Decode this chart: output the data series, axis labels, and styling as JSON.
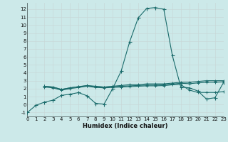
{
  "xlabel": "Humidex (Indice chaleur)",
  "bg_color": "#cce9e9",
  "grid_color": "#dde8e8",
  "line_color": "#1a6b6b",
  "xlim": [
    0,
    23
  ],
  "ylim": [
    -1.5,
    12.8
  ],
  "yticks": [
    -1,
    0,
    1,
    2,
    3,
    4,
    5,
    6,
    7,
    8,
    9,
    10,
    11,
    12
  ],
  "xticks": [
    0,
    1,
    2,
    3,
    4,
    5,
    6,
    7,
    8,
    9,
    10,
    11,
    12,
    13,
    14,
    15,
    16,
    17,
    18,
    19,
    20,
    21,
    22,
    23
  ],
  "line1_x": [
    0,
    1,
    2,
    3,
    4,
    5,
    6,
    7,
    8,
    9,
    10,
    11,
    12,
    13,
    14,
    15,
    16,
    17,
    18,
    19,
    20,
    21,
    22,
    23
  ],
  "line1_y": [
    -1.0,
    -0.1,
    0.3,
    0.55,
    1.15,
    1.3,
    1.5,
    1.1,
    0.15,
    0.05,
    2.0,
    4.2,
    7.9,
    10.9,
    12.1,
    12.2,
    12.0,
    6.2,
    2.2,
    2.1,
    1.7,
    0.7,
    0.85,
    2.75
  ],
  "line2_x": [
    2,
    3,
    4,
    5,
    6,
    7,
    8,
    9,
    10,
    11,
    12,
    13,
    14,
    15,
    16,
    17,
    18,
    19,
    20,
    21,
    22,
    23
  ],
  "line2_y": [
    2.3,
    2.2,
    1.9,
    2.1,
    2.25,
    2.4,
    2.3,
    2.2,
    2.3,
    2.4,
    2.5,
    2.5,
    2.6,
    2.6,
    2.6,
    2.7,
    2.8,
    2.8,
    2.9,
    3.0,
    3.0,
    3.0
  ],
  "line3_x": [
    2,
    3,
    4,
    5,
    6,
    7,
    8,
    9,
    10,
    11,
    12,
    13,
    14,
    15,
    16,
    17,
    18,
    19,
    20,
    21,
    22,
    23
  ],
  "line3_y": [
    2.2,
    2.1,
    1.8,
    2.0,
    2.15,
    2.3,
    2.15,
    2.1,
    2.15,
    2.2,
    2.25,
    2.3,
    2.35,
    2.35,
    2.38,
    2.48,
    2.5,
    1.82,
    1.52,
    1.52,
    1.52,
    1.62
  ],
  "line4_x": [
    2,
    3,
    4,
    5,
    6,
    7,
    8,
    9,
    10,
    11,
    12,
    13,
    14,
    15,
    16,
    17,
    18,
    19,
    20,
    21,
    22,
    23
  ],
  "line4_y": [
    2.3,
    2.2,
    1.9,
    2.1,
    2.25,
    2.35,
    2.25,
    2.2,
    2.25,
    2.3,
    2.35,
    2.4,
    2.45,
    2.45,
    2.48,
    2.58,
    2.68,
    2.62,
    2.72,
    2.8,
    2.8,
    2.85
  ],
  "tick_fontsize": 5,
  "xlabel_fontsize": 6
}
